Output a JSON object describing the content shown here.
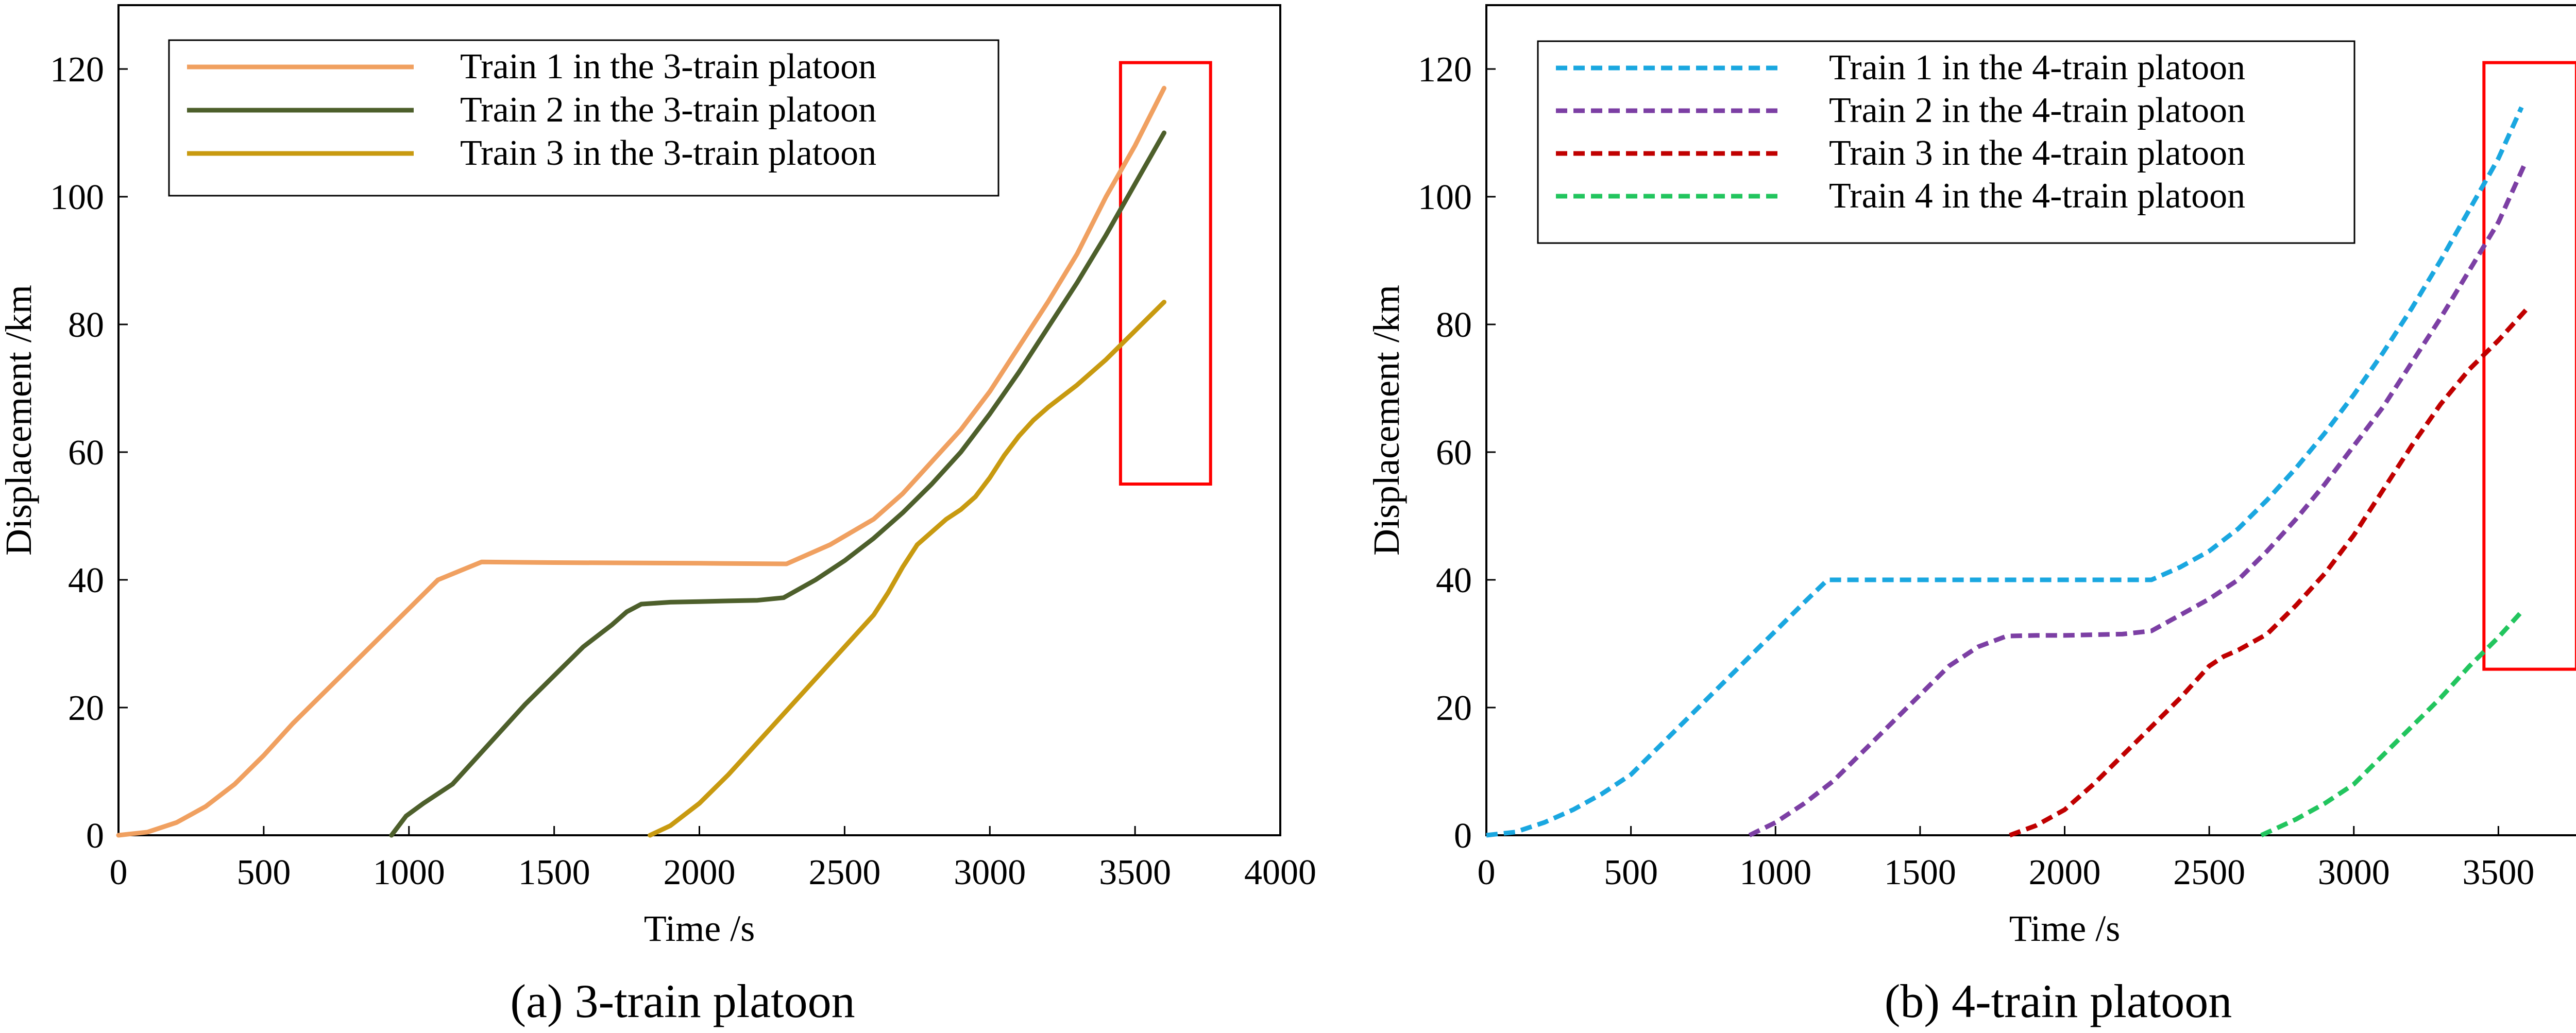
{
  "chart_data": [
    {
      "type": "line",
      "title": "",
      "caption": "(a) 3-train platoon",
      "xlabel": "Time /s",
      "ylabel": "Displacement /km",
      "xlim": [
        0,
        4000
      ],
      "ylim": [
        0,
        130
      ],
      "xticks": [
        0,
        500,
        1000,
        1500,
        2000,
        2500,
        3000,
        3500,
        4000
      ],
      "yticks": [
        0,
        20,
        40,
        60,
        80,
        100,
        120
      ],
      "grid": false,
      "legend_position": "top-left",
      "series": [
        {
          "name": "Train 1 in the 3-train platoon",
          "color": "#f0a060",
          "style": "solid",
          "x": [
            0,
            100,
            200,
            300,
            400,
            500,
            600,
            700,
            800,
            900,
            1000,
            1100,
            1250,
            1500,
            2000,
            2300,
            2450,
            2600,
            2700,
            2800,
            2900,
            3000,
            3100,
            3200,
            3300,
            3400,
            3500,
            3600
          ],
          "y": [
            0,
            0.5,
            2,
            4.5,
            8,
            12.5,
            17.5,
            22,
            26.5,
            31,
            35.5,
            40,
            42.8,
            42.7,
            42.6,
            42.5,
            45.5,
            49.5,
            53.5,
            58.5,
            63.5,
            69.5,
            76.5,
            83.5,
            91,
            100,
            108,
            117
          ]
        },
        {
          "name": "Train 2 in the 3-train platoon",
          "color": "#4d5f2b",
          "style": "solid",
          "x": [
            940,
            990,
            1050,
            1100,
            1150,
            1200,
            1300,
            1400,
            1500,
            1600,
            1700,
            1750,
            1800,
            1900,
            2000,
            2100,
            2200,
            2290,
            2400,
            2500,
            2600,
            2700,
            2800,
            2900,
            3000,
            3100,
            3200,
            3300,
            3400,
            3500,
            3600
          ],
          "y": [
            0,
            3,
            5,
            6.5,
            8,
            10.5,
            15.5,
            20.5,
            25,
            29.5,
            33,
            35,
            36.2,
            36.5,
            36.6,
            36.7,
            36.8,
            37.2,
            40,
            43,
            46.5,
            50.5,
            55,
            60,
            66,
            72.5,
            79.5,
            86.5,
            94,
            102,
            110
          ]
        },
        {
          "name": "Train 3 in the 3-train platoon",
          "color": "#c89a10",
          "style": "solid",
          "x": [
            1830,
            1900,
            2000,
            2100,
            2200,
            2300,
            2400,
            2500,
            2600,
            2650,
            2700,
            2750,
            2800,
            2850,
            2900,
            2950,
            3000,
            3050,
            3100,
            3150,
            3200,
            3300,
            3400,
            3500,
            3600
          ],
          "y": [
            0,
            1.5,
            5,
            9.5,
            14.5,
            19.5,
            24.5,
            29.5,
            34.5,
            38,
            42,
            45.5,
            47.5,
            49.5,
            51,
            53,
            56,
            59.5,
            62.5,
            65,
            67,
            70.5,
            74.5,
            79,
            83.5
          ]
        }
      ],
      "highlight_box": {
        "x": [
          3450,
          3760
        ],
        "y": [
          55,
          121
        ],
        "color": "#ff0000"
      }
    },
    {
      "type": "line",
      "title": "",
      "caption": "(b) 4-train platoon",
      "xlabel": "Time /s",
      "ylabel": "Displacement  /km",
      "xlim": [
        0,
        4000
      ],
      "ylim": [
        0,
        130
      ],
      "xticks": [
        0,
        500,
        1000,
        1500,
        2000,
        2500,
        3000,
        3500,
        4000
      ],
      "yticks": [
        0,
        20,
        40,
        60,
        80,
        100,
        120
      ],
      "grid": false,
      "legend_position": "top-left",
      "series": [
        {
          "name": "Train 1 in the 4-train platoon",
          "color": "#1aa7e0",
          "style": "dashed",
          "x": [
            0,
            100,
            200,
            300,
            400,
            500,
            600,
            700,
            800,
            900,
            1000,
            1100,
            1180,
            1500,
            2000,
            2300,
            2400,
            2500,
            2600,
            2700,
            2800,
            2900,
            3000,
            3100,
            3200,
            3300,
            3400,
            3500,
            3580
          ],
          "y": [
            0,
            0.5,
            2,
            4,
            6.5,
            9.5,
            14,
            18.5,
            23,
            27.5,
            32,
            36.5,
            40,
            40,
            40,
            40,
            42,
            44.5,
            48,
            52.5,
            57.5,
            63,
            69,
            75.5,
            82.5,
            90,
            98,
            106,
            114
          ]
        },
        {
          "name": "Train 2 in the 4-train platoon",
          "color": "#7c3fa4",
          "style": "dashed",
          "x": [
            910,
            1000,
            1100,
            1200,
            1300,
            1400,
            1500,
            1600,
            1700,
            1800,
            1900,
            2000,
            2100,
            2200,
            2300,
            2400,
            2500,
            2600,
            2700,
            2800,
            2900,
            3000,
            3100,
            3200,
            3300,
            3400,
            3500,
            3590
          ],
          "y": [
            0,
            2,
            5,
            8.5,
            13,
            17.5,
            22,
            26.5,
            29.5,
            31.2,
            31.3,
            31.3,
            31.4,
            31.5,
            32,
            34.5,
            37,
            40,
            44.5,
            49.5,
            55,
            61,
            67,
            74,
            81,
            88.5,
            96,
            105
          ]
        },
        {
          "name": "Train 3 in the 4-train platoon",
          "color": "#c00000",
          "style": "dashed",
          "x": [
            1810,
            1900,
            2000,
            2100,
            2200,
            2300,
            2400,
            2500,
            2550,
            2600,
            2700,
            2800,
            2900,
            3000,
            3100,
            3200,
            3300,
            3400,
            3500,
            3600
          ],
          "y": [
            0,
            1.5,
            4,
            8,
            12.5,
            17,
            21.5,
            26.5,
            28,
            29,
            31.5,
            36,
            41,
            47,
            54,
            61,
            67.5,
            73,
            77.5,
            82.5
          ]
        },
        {
          "name": "Train 4 in the 4-train platoon",
          "color": "#22c55e",
          "style": "dashed",
          "x": [
            2680,
            2800,
            2900,
            3000,
            3100,
            3200,
            3300,
            3400,
            3500,
            3580
          ],
          "y": [
            0,
            2.5,
            5,
            8,
            12.5,
            17,
            21.5,
            26.5,
            31,
            35
          ]
        }
      ],
      "highlight_box": {
        "x": [
          3450,
          3770
        ],
        "y": [
          26,
          121
        ],
        "color": "#ff0000"
      }
    }
  ]
}
